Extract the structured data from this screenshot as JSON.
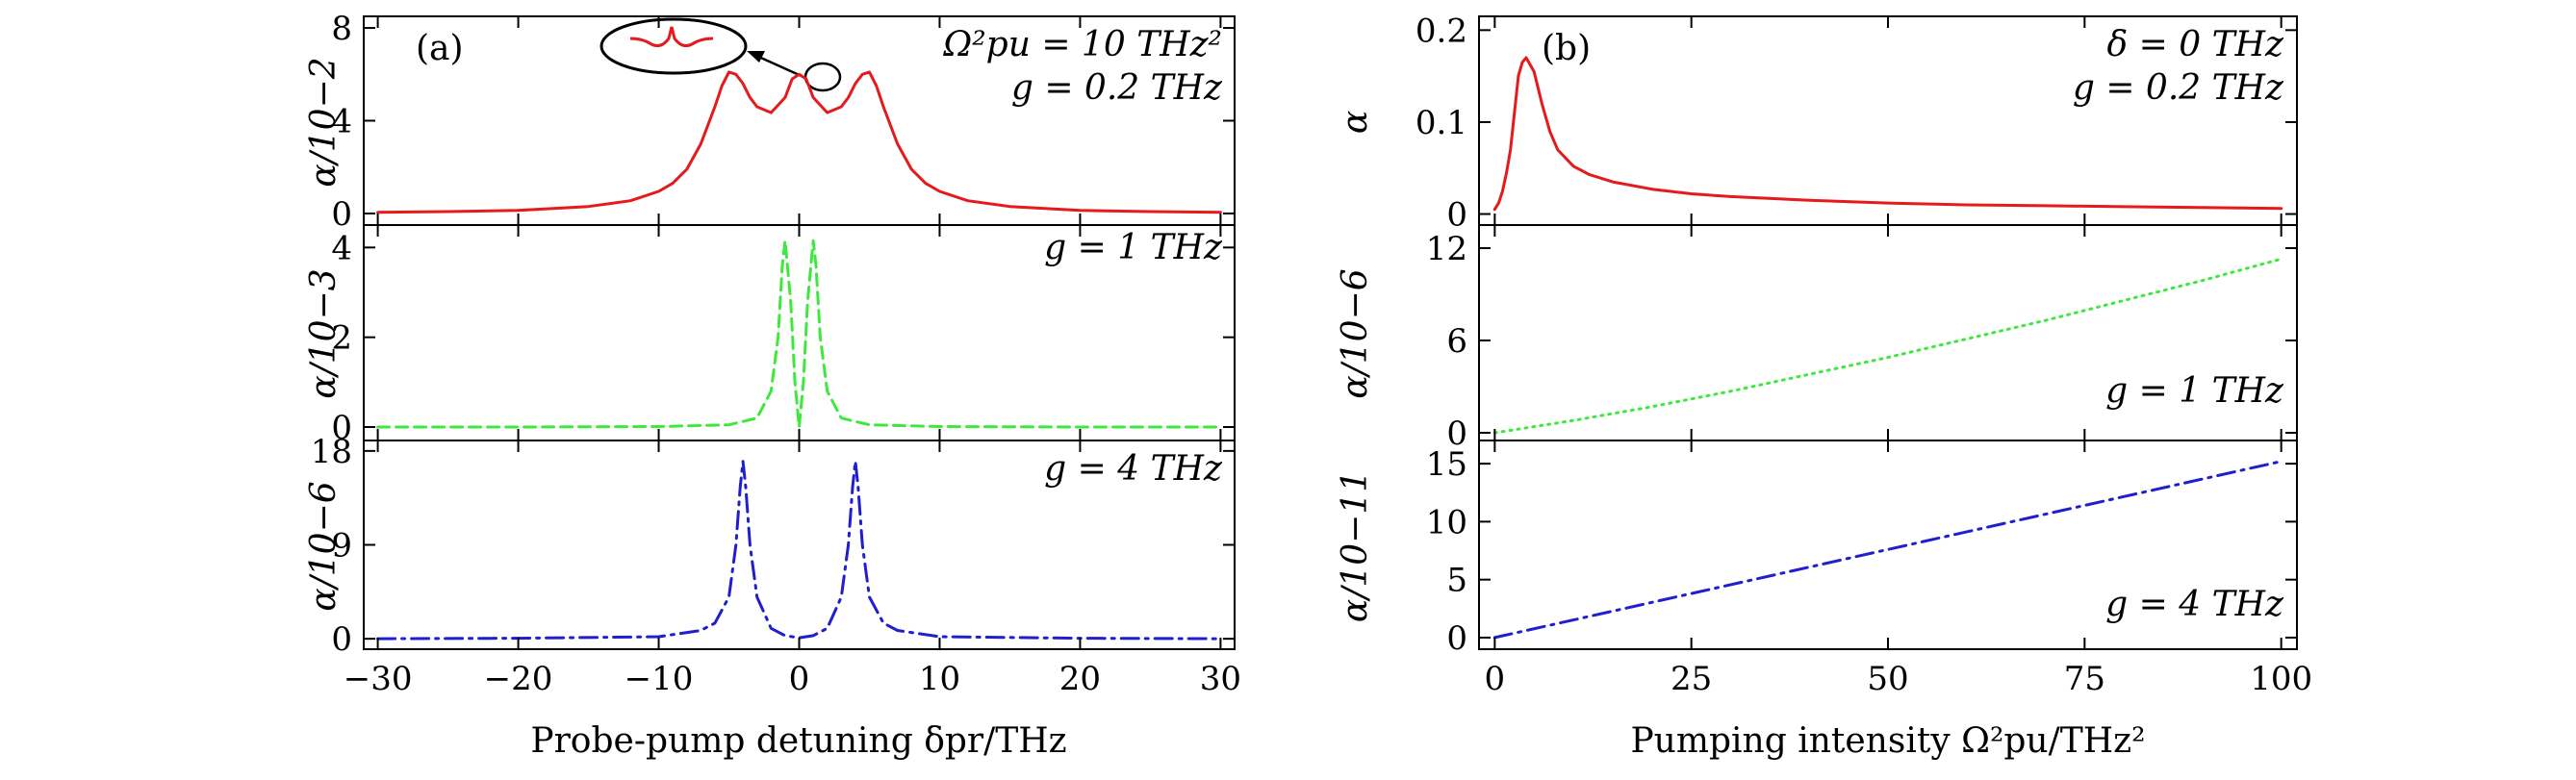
{
  "figure": {
    "left": {
      "panel_label": "(a)",
      "xlabel": "Probe-pump detuning δpr/THz",
      "xticks": [
        "−30",
        "−20",
        "−10",
        "0",
        "10",
        "20",
        "30"
      ],
      "rows": [
        {
          "ylabel": "α/10−2",
          "yticks": [
            "0",
            "4",
            "8"
          ],
          "annotation_line1": "Ω²pu = 10 THz²",
          "annotation_line2": "g = 0.2 THz"
        },
        {
          "ylabel": "α/10−3",
          "yticks": [
            "0",
            "2",
            "4"
          ],
          "annotation_line1": "g = 1 THz"
        },
        {
          "ylabel": "α/10−6",
          "yticks": [
            "0",
            "9",
            "18"
          ],
          "annotation_line1": "g = 4 THz"
        }
      ]
    },
    "right": {
      "panel_label": "(b)",
      "xlabel": "Pumping intensity Ω²pu/THz²",
      "xticks": [
        "0",
        "25",
        "50",
        "75",
        "100"
      ],
      "rows": [
        {
          "ylabel": "α",
          "yticks": [
            "0",
            "0.1",
            "0.2"
          ],
          "annotation_line1": "δ = 0 THz",
          "annotation_line2": "g = 0.2 THz"
        },
        {
          "ylabel": "α/10−6",
          "yticks": [
            "0",
            "6",
            "12"
          ],
          "annotation_line1": "g = 1 THz"
        },
        {
          "ylabel": "α/10−11",
          "yticks": [
            "0",
            "5",
            "10",
            "15"
          ],
          "annotation_line1": "g = 4 THz"
        }
      ]
    }
  },
  "chart_data": [
    {
      "type": "line",
      "panel": "(a) top",
      "xlabel": "Probe-pump detuning δpr/THz",
      "ylabel": "α/10−2",
      "xlim": [
        -31,
        31
      ],
      "ylim": [
        -0.5,
        8.5
      ],
      "series": [
        {
          "color": "#e41a1c",
          "style": "solid",
          "x": [
            -30,
            -25,
            -20,
            -15,
            -12,
            -10,
            -9,
            -8,
            -7,
            -6,
            -5.5,
            -5,
            -4.5,
            -4,
            -3.5,
            -3,
            -2,
            -1,
            -0.5,
            0,
            0.5,
            1,
            2,
            3,
            3.5,
            4,
            4.5,
            5,
            5.5,
            6,
            7,
            8,
            9,
            10,
            12,
            15,
            20,
            25,
            30
          ],
          "values": [
            0.05,
            0.08,
            0.13,
            0.3,
            0.55,
            0.95,
            1.3,
            1.9,
            3.0,
            4.6,
            5.5,
            6.1,
            6.0,
            5.6,
            5.0,
            4.6,
            4.35,
            5.0,
            5.8,
            6.0,
            5.8,
            5.0,
            4.35,
            4.6,
            5.0,
            5.6,
            6.0,
            6.1,
            5.5,
            4.6,
            3.0,
            1.9,
            1.3,
            0.95,
            0.55,
            0.3,
            0.13,
            0.08,
            0.05
          ]
        }
      ],
      "inset": {
        "marker_x": 0,
        "marker_y": 5.5,
        "description": "zoomed view of central peak dip"
      }
    },
    {
      "type": "line",
      "panel": "(a) middle",
      "xlim": [
        -31,
        31
      ],
      "ylim": [
        -0.3,
        4.5
      ],
      "series": [
        {
          "color": "#3ee83e",
          "style": "dashed",
          "x": [
            -30,
            -20,
            -10,
            -5,
            -3,
            -2,
            -1.5,
            -1.2,
            -1.0,
            -0.6,
            -0.3,
            0,
            0.3,
            0.6,
            1.0,
            1.2,
            1.5,
            2,
            3,
            5,
            10,
            20,
            30
          ],
          "values": [
            0.0,
            0.0,
            0.01,
            0.05,
            0.2,
            0.8,
            2.0,
            3.6,
            4.15,
            2.8,
            1.0,
            0.0,
            1.0,
            2.8,
            4.15,
            3.6,
            2.0,
            0.8,
            0.2,
            0.05,
            0.01,
            0.0,
            0.0
          ]
        }
      ]
    },
    {
      "type": "line",
      "panel": "(a) bottom",
      "xlim": [
        -31,
        31
      ],
      "ylim": [
        -1,
        19
      ],
      "series": [
        {
          "color": "#1f1fd0",
          "style": "dashdot",
          "x": [
            -30,
            -20,
            -10,
            -7,
            -6,
            -5,
            -4.5,
            -4.2,
            -4,
            -3.8,
            -3.5,
            -3,
            -2,
            -1,
            0,
            1,
            2,
            3,
            3.5,
            3.8,
            4,
            4.2,
            4.5,
            5,
            6,
            7,
            10,
            20,
            30
          ],
          "values": [
            0.0,
            0.05,
            0.2,
            0.8,
            1.5,
            4.0,
            9.0,
            14.5,
            17.0,
            14.5,
            9.0,
            4.0,
            1.0,
            0.3,
            0.1,
            0.3,
            1.0,
            4.0,
            9.0,
            14.5,
            17.0,
            14.5,
            9.0,
            4.0,
            1.5,
            0.8,
            0.2,
            0.05,
            0.0
          ]
        }
      ]
    },
    {
      "type": "line",
      "panel": "(b) top",
      "xlabel": "Pumping intensity Ω²pu/THz²",
      "ylabel": "α",
      "xlim": [
        -2,
        102
      ],
      "ylim": [
        -0.012,
        0.215
      ],
      "series": [
        {
          "color": "#e41a1c",
          "style": "solid",
          "x": [
            0,
            0.5,
            1,
            1.5,
            2,
            2.5,
            3,
            3.5,
            4,
            5,
            6,
            7,
            8,
            10,
            12,
            15,
            20,
            25,
            30,
            40,
            50,
            60,
            70,
            80,
            90,
            100
          ],
          "values": [
            0.005,
            0.012,
            0.025,
            0.045,
            0.07,
            0.11,
            0.15,
            0.165,
            0.17,
            0.155,
            0.12,
            0.09,
            0.07,
            0.052,
            0.043,
            0.035,
            0.027,
            0.022,
            0.019,
            0.015,
            0.012,
            0.01,
            0.009,
            0.008,
            0.007,
            0.006
          ]
        }
      ]
    },
    {
      "type": "line",
      "panel": "(b) middle",
      "xlim": [
        -2,
        102
      ],
      "ylim": [
        -0.5,
        13.5
      ],
      "series": [
        {
          "color": "#3ee83e",
          "style": "dotted",
          "x": [
            0,
            10,
            20,
            30,
            40,
            50,
            60,
            70,
            80,
            90,
            100
          ],
          "values": [
            0,
            0.8,
            1.7,
            2.7,
            3.8,
            4.9,
            6.1,
            7.3,
            8.6,
            9.9,
            11.3
          ]
        }
      ]
    },
    {
      "type": "line",
      "panel": "(b) bottom",
      "xlim": [
        -2,
        102
      ],
      "ylim": [
        -1,
        17
      ],
      "series": [
        {
          "color": "#1f1fd0",
          "style": "dashdot",
          "x": [
            0,
            25,
            50,
            75,
            100
          ],
          "values": [
            0,
            3.8,
            7.6,
            11.4,
            15.2
          ]
        }
      ]
    }
  ]
}
